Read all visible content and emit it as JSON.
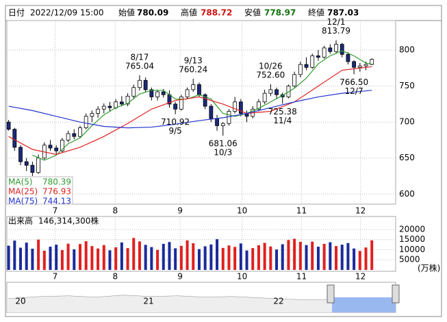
{
  "header": {
    "date_label": "日付",
    "date": "2022/12/09 15:00",
    "open_label": "始値",
    "high_label": "高値",
    "low_label": "安値",
    "close_label": "終値"
  },
  "chart_data": {
    "type": "candlestick",
    "open": [
      700,
      690,
      665,
      645,
      640,
      630,
      650,
      668,
      664,
      660,
      675,
      684,
      680,
      692,
      708,
      712,
      718,
      722,
      720,
      728,
      725,
      736,
      748,
      758,
      745,
      735,
      742,
      738,
      725,
      718,
      735,
      745,
      752,
      738,
      722,
      705,
      695,
      698,
      715,
      728,
      712,
      708,
      718,
      728,
      740,
      745,
      738,
      735,
      750,
      766,
      780,
      776,
      792,
      790,
      803,
      798,
      808,
      794,
      784,
      776,
      778,
      780.09
    ],
    "high": [
      703,
      692,
      668,
      650,
      645,
      655,
      672,
      675,
      668,
      678,
      688,
      690,
      695,
      712,
      716,
      722,
      726,
      728,
      732,
      736,
      740,
      752,
      765.04,
      762,
      748,
      745,
      746,
      744,
      728,
      738,
      748,
      760.24,
      755,
      740,
      725,
      710,
      700,
      718,
      735,
      732,
      716,
      722,
      732,
      745,
      752.6,
      748,
      741,
      752,
      770,
      784,
      790,
      795,
      800,
      806,
      808,
      813.79,
      810,
      797,
      786,
      782,
      784,
      788.72
    ],
    "low": [
      688,
      660,
      640,
      632,
      625,
      628,
      648,
      660,
      655,
      658,
      672,
      676,
      678,
      690,
      700,
      706,
      712,
      715,
      718,
      722,
      722,
      732,
      744,
      742,
      730,
      730,
      734,
      720,
      710.92,
      716,
      732,
      742,
      735,
      718,
      700,
      688,
      681.06,
      695,
      712,
      708,
      700,
      705,
      715,
      725,
      736,
      732,
      725.38,
      733,
      748,
      762,
      772,
      774,
      785,
      788,
      795,
      796,
      790,
      780,
      766.5,
      770,
      772,
      778.97
    ],
    "close": [
      690,
      665,
      645,
      640,
      630,
      650,
      668,
      664,
      660,
      675,
      684,
      680,
      692,
      708,
      712,
      718,
      722,
      720,
      728,
      725,
      736,
      748,
      758,
      745,
      735,
      742,
      738,
      725,
      718,
      735,
      745,
      752,
      738,
      722,
      705,
      695,
      698,
      715,
      728,
      712,
      708,
      718,
      728,
      740,
      745,
      738,
      735,
      750,
      766,
      780,
      776,
      792,
      790,
      803,
      798,
      808,
      794,
      784,
      776,
      778,
      780,
      787.03
    ],
    "up_color": "#ffffff",
    "down_color": "#1a2a7a",
    "xlim": [
      -0.3,
      65
    ],
    "xticks": [
      {
        "value": 7.8,
        "label": "7"
      },
      {
        "value": 17.9,
        "label": "8"
      },
      {
        "value": 28.8,
        "label": "9"
      },
      {
        "value": 39.2,
        "label": "10"
      },
      {
        "value": 49.2,
        "label": "11"
      },
      {
        "value": 59.1,
        "label": "12"
      }
    ],
    "ylim": [
      586,
      841
    ],
    "yticks": [
      600,
      650,
      700,
      750,
      800
    ],
    "grid": true,
    "series": [
      {
        "name": "MA(5)",
        "color": "#2e9a2e",
        "x": [
          4,
          6,
          8,
          10,
          12,
          14,
          16,
          18,
          20,
          22,
          24,
          26,
          28,
          30,
          32,
          34,
          36,
          38,
          40,
          42,
          44,
          46,
          48,
          50,
          52,
          54,
          56,
          58,
          60,
          61
        ],
        "values": [
          654,
          647,
          654,
          670,
          678,
          695,
          710,
          720,
          726,
          739,
          744,
          744,
          732,
          732,
          738,
          732,
          712,
          708,
          712,
          719,
          728,
          737,
          747,
          761,
          781,
          792,
          799,
          792,
          782,
          780.39
        ]
      },
      {
        "name": "MA(25)",
        "color": "#e02020",
        "x": [
          0,
          4,
          8,
          12,
          16,
          20,
          24,
          28,
          32,
          36,
          40,
          44,
          48,
          52,
          56,
          61
        ],
        "values": [
          680,
          662,
          655,
          665,
          680,
          698,
          718,
          730,
          735,
          725,
          712,
          715,
          728,
          750,
          772,
          776.93
        ]
      },
      {
        "name": "MA(75)",
        "color": "#2233cc",
        "x": [
          0,
          4,
          8,
          12,
          16,
          20,
          24,
          28,
          32,
          36,
          40,
          44,
          48,
          52,
          56,
          61
        ],
        "values": [
          722,
          716,
          708,
          700,
          694,
          692,
          693,
          697,
          702,
          706,
          712,
          720,
          728,
          735,
          740,
          744.13
        ]
      }
    ],
    "annotations": [
      {
        "date": "8/17",
        "value": 765.04,
        "label": "765.04"
      },
      {
        "date": "9/13",
        "value": 760.24,
        "label": "760.24"
      },
      {
        "date": "9/5",
        "value": 710.92,
        "label": "710.92"
      },
      {
        "date": "10/3",
        "value": 681.06,
        "label": "681.06"
      },
      {
        "date": "10/26",
        "value": 752.6,
        "label": "752.60"
      },
      {
        "date": "11/4",
        "value": 725.38,
        "label": "725.38"
      },
      {
        "date": "12/1",
        "value": 813.79,
        "label": "813.79"
      },
      {
        "date": "12/7",
        "value": 766.5,
        "label": "766.50"
      }
    ],
    "volume": {
      "title": "出来高",
      "total": "146,314,300株",
      "unit": "(万株)",
      "up_color": "#e02020",
      "down_color": "#1a2a9a",
      "ylim": [
        0,
        25750
      ],
      "yticks": [
        5000,
        10000,
        15000,
        20000
      ],
      "values": [
        12000,
        14500,
        11000,
        13500,
        10500,
        15000,
        9500,
        11500,
        12500,
        9800,
        13000,
        10200,
        12800,
        14200,
        11800,
        10600,
        12300,
        9700,
        11200,
        13600,
        10800,
        15800,
        14100,
        12400,
        11300,
        9900,
        12900,
        13800,
        10700,
        11900,
        14600,
        13200,
        10300,
        11700,
        12600,
        15200,
        10900,
        12100,
        11400,
        13100,
        9600,
        10800,
        12200,
        13400,
        11600,
        10100,
        12700,
        14800,
        15400,
        13900,
        12300,
        14000,
        11500,
        12900,
        13700,
        11800,
        12500,
        13300,
        10600,
        9400,
        11100,
        14631
      ]
    },
    "navigator": {
      "labels": [
        "20",
        "21",
        "22"
      ]
    }
  }
}
